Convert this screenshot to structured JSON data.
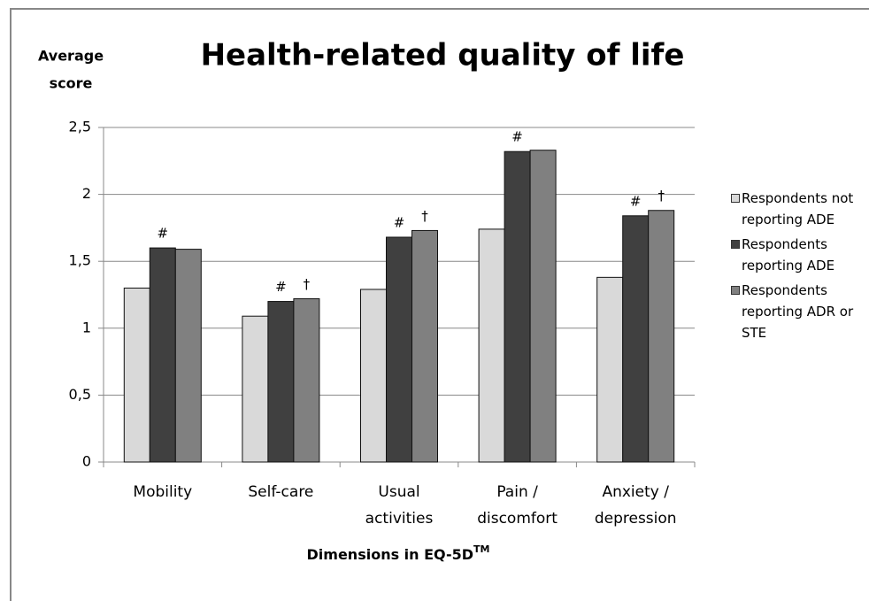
{
  "chart_data": {
    "type": "bar",
    "title": "Health-related quality of life",
    "ylabel": [
      "Average",
      "score"
    ],
    "xlabel": "Dimensions in EQ-5D",
    "xlabel_sup": "TM",
    "categories": [
      [
        "Mobility"
      ],
      [
        "Self-care"
      ],
      [
        "Usual",
        "activities"
      ],
      [
        "Pain /",
        "discomfort"
      ],
      [
        "Anxiety /",
        "depression"
      ]
    ],
    "series": [
      {
        "name": "Respondents not reporting ADE",
        "color": "#d9d9d9",
        "values": [
          1.3,
          1.09,
          1.29,
          1.74,
          1.38
        ]
      },
      {
        "name": "Respondents reporting ADE",
        "color": "#404040",
        "values": [
          1.6,
          1.2,
          1.68,
          2.32,
          1.84
        ]
      },
      {
        "name": "Respondents reporting ADR or STE",
        "color": "#808080",
        "values": [
          1.59,
          1.22,
          1.73,
          2.33,
          1.88
        ]
      }
    ],
    "annotations": [
      {
        "text": "#",
        "category": 0,
        "series": 1
      },
      {
        "text": "#",
        "category": 1,
        "series": 1
      },
      {
        "text": "†",
        "category": 1,
        "series": 2
      },
      {
        "text": "#",
        "category": 2,
        "series": 1
      },
      {
        "text": "†",
        "category": 2,
        "series": 2
      },
      {
        "text": "#",
        "category": 3,
        "series": 1
      },
      {
        "text": "#",
        "category": 4,
        "series": 1
      },
      {
        "text": "†",
        "category": 4,
        "series": 2
      }
    ],
    "ylim": [
      0,
      2.5
    ],
    "yticks": [
      0,
      {
        "value": 0.5,
        "label": "0,5"
      },
      1,
      {
        "value": 1.5,
        "label": "1,5"
      },
      2,
      {
        "value": 2.5,
        "label": "2,5"
      }
    ],
    "grid": true
  }
}
